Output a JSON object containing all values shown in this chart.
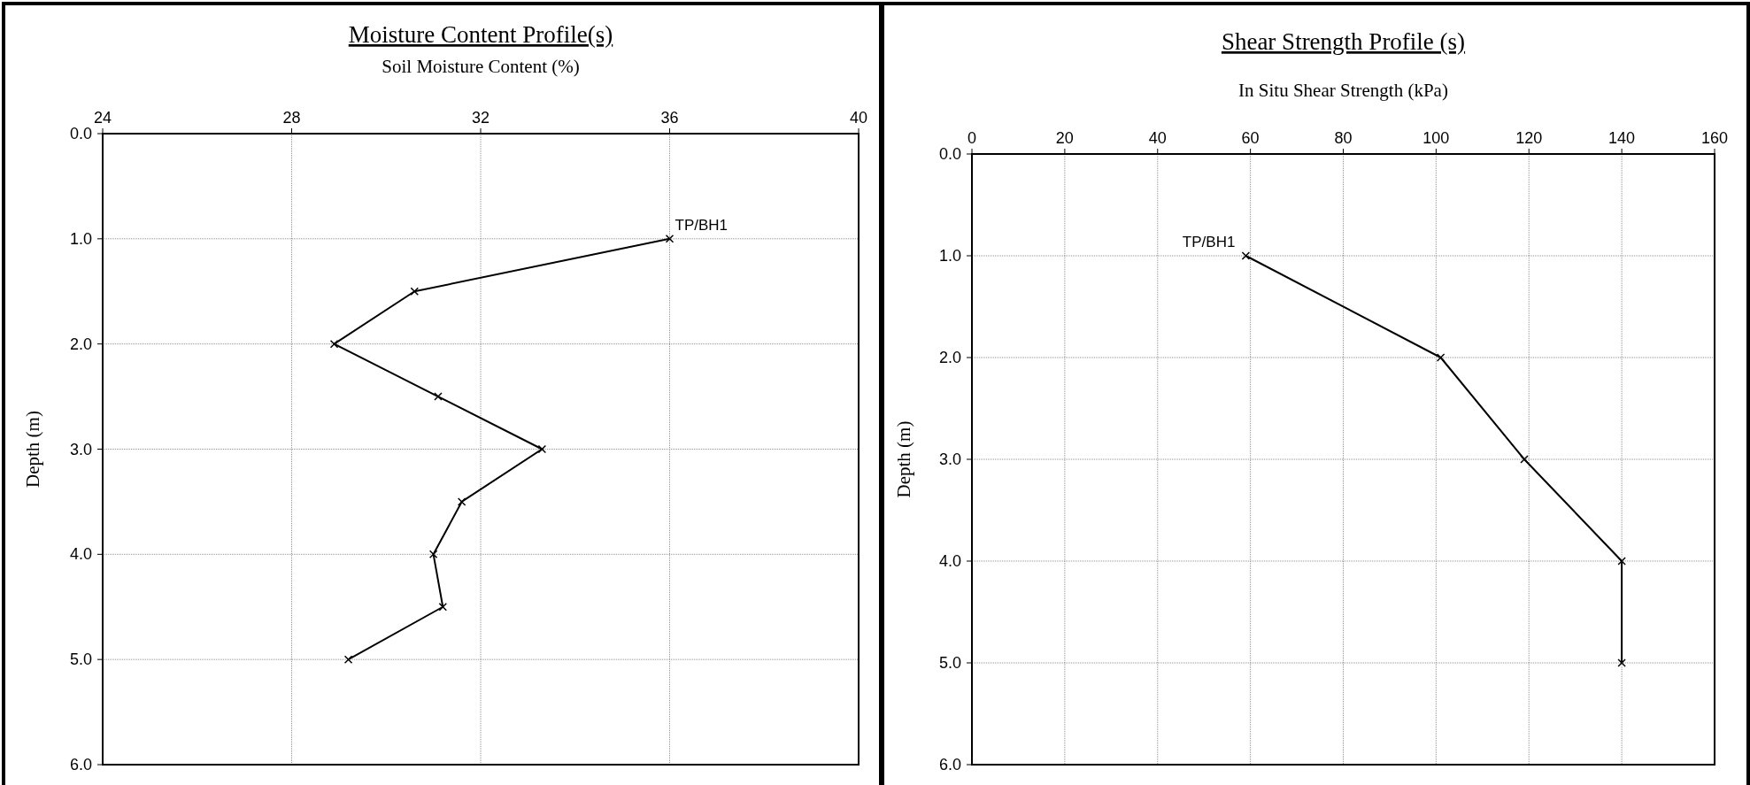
{
  "chart_data": [
    {
      "type": "line",
      "title": "Moisture Content Profile(s)",
      "xlabel": "Soil Moisture Content (%)",
      "ylabel": "Depth (m)",
      "xlim": [
        24,
        40
      ],
      "xticks": [
        24,
        28,
        32,
        36,
        40
      ],
      "ylim": [
        6,
        0
      ],
      "yticks": [
        {
          "value": 0,
          "label": "0.0"
        },
        {
          "value": 1,
          "label": "1.0"
        },
        {
          "value": 2,
          "label": "2.0"
        },
        {
          "value": 3,
          "label": "3.0"
        },
        {
          "value": 4,
          "label": "4.0"
        },
        {
          "value": 5,
          "label": "5.0"
        },
        {
          "value": 6,
          "label": "6.0"
        }
      ],
      "grid": true,
      "marker": "cross",
      "line_style": "solid",
      "series": [
        {
          "name": "TP/BH1",
          "color": "#000000",
          "x": [
            36.0,
            30.6,
            28.9,
            31.1,
            33.3,
            31.6,
            31.0,
            31.2,
            29.2
          ],
          "values": [
            1.0,
            1.5,
            2.0,
            2.5,
            3.0,
            3.5,
            4.0,
            4.5,
            5.0
          ]
        }
      ]
    },
    {
      "type": "line",
      "title": "Shear Strength Profile (s)",
      "xlabel": "In Situ Shear Strength (kPa)",
      "ylabel": "Depth (m)",
      "xlim": [
        0,
        160
      ],
      "xticks": [
        0,
        20,
        40,
        60,
        80,
        100,
        120,
        140,
        160
      ],
      "ylim": [
        6,
        0
      ],
      "yticks": [
        {
          "value": 0,
          "label": "0.0"
        },
        {
          "value": 1,
          "label": "1.0"
        },
        {
          "value": 2,
          "label": "2.0"
        },
        {
          "value": 3,
          "label": "3.0"
        },
        {
          "value": 4,
          "label": "4.0"
        },
        {
          "value": 5,
          "label": "5.0"
        },
        {
          "value": 6,
          "label": "6.0"
        }
      ],
      "grid": true,
      "marker": "cross",
      "line_style": "solid",
      "series": [
        {
          "name": "TP/BH1",
          "color": "#000000",
          "x": [
            59,
            101,
            119,
            140,
            140
          ],
          "values": [
            1,
            2,
            3,
            4,
            5
          ]
        }
      ]
    }
  ]
}
